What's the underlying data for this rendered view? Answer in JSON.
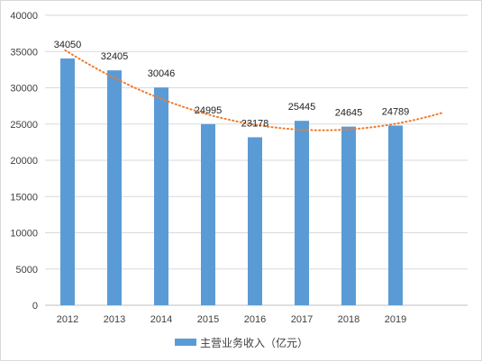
{
  "chart_data": {
    "type": "bar",
    "categories": [
      "2012",
      "2013",
      "2014",
      "2015",
      "2016",
      "2017",
      "2018",
      "2019"
    ],
    "series": [
      {
        "name": "主营业务收入（亿元）",
        "values": [
          34050,
          32405,
          30046,
          24995,
          23178,
          25445,
          24645,
          24789
        ],
        "color": "#5b9bd5"
      }
    ],
    "trendline": {
      "type": "polynomial",
      "color": "#ed7d31",
      "style": "dotted"
    },
    "ylim": [
      0,
      40000
    ],
    "yticks": [
      0,
      5000,
      10000,
      15000,
      20000,
      25000,
      30000,
      35000,
      40000
    ],
    "grid": "horizontal",
    "legend_position": "bottom",
    "data_labels": true,
    "title": "",
    "xlabel": "",
    "ylabel": ""
  }
}
